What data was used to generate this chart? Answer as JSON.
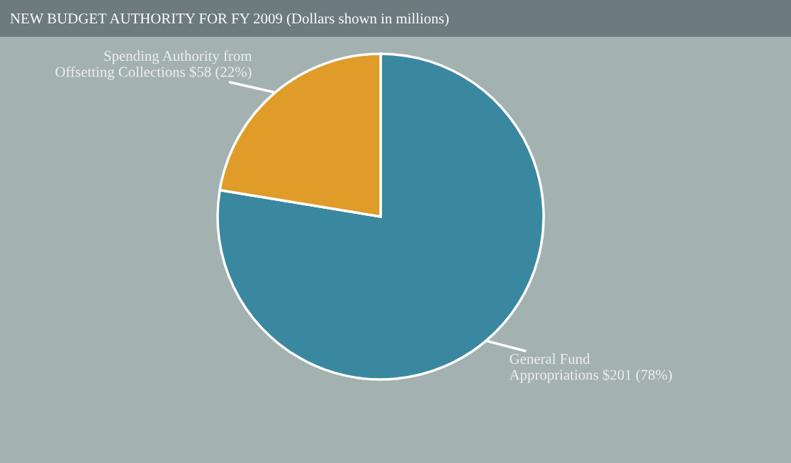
{
  "chart_data": {
    "type": "pie",
    "title": "NEW BUDGET AUTHORITY FOR FY 2009 (Dollars shown in millions)",
    "categories": [
      "General Fund Appropriations",
      "Spending Authority from Offsetting Collections"
    ],
    "values": [
      201,
      58
    ],
    "colors": [
      "#3a889f",
      "#e09c28"
    ],
    "value_labels": [
      "$201 (78%)",
      "$58 (22%)"
    ]
  }
}
